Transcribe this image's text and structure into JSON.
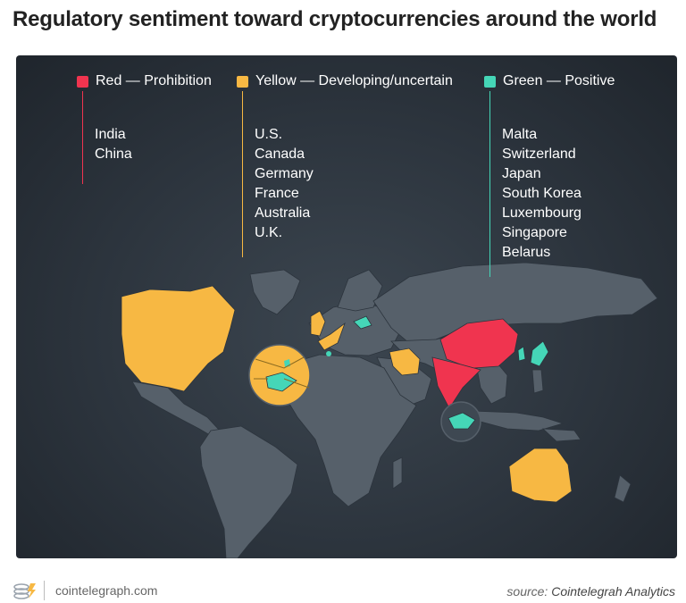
{
  "title": "Regulatory sentiment toward cryptocurrencies around the world",
  "legend": [
    {
      "label": "Red — Prohibition",
      "color": "#f0344f",
      "countries": [
        "India",
        "China"
      ]
    },
    {
      "label": "Yellow — Developing/uncertain",
      "color": "#f7b843",
      "countries": [
        "U.S.",
        "Canada",
        "Germany",
        "France",
        "Australia",
        "U.K."
      ]
    },
    {
      "label": "Green — Positive",
      "color": "#45d6b7",
      "countries": [
        "Malta",
        "Switzerland",
        "Japan",
        "South Korea",
        "Luxembourg",
        "Singapore",
        "Belarus"
      ]
    }
  ],
  "colors": {
    "panel": "#2c343d",
    "land": "#56606a",
    "prohibition": "#f0344f",
    "developing": "#f7b843",
    "positive": "#45d6b7"
  },
  "footer": {
    "site": "cointelegraph.com",
    "source_prefix": "source:",
    "source_name": "Cointelegrah Analytics"
  }
}
